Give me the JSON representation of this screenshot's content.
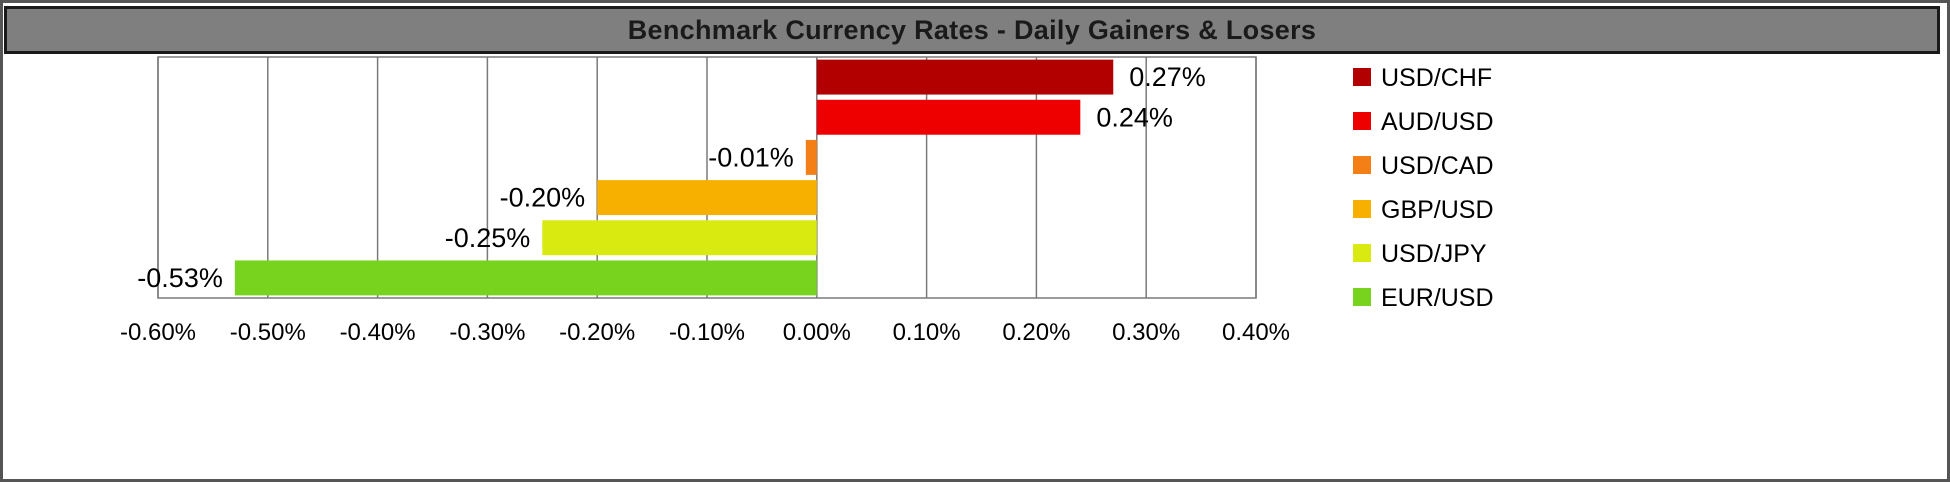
{
  "chart_data": {
    "type": "bar",
    "orientation": "horizontal",
    "title": "Benchmark Currency Rates - Daily Gainers & Losers",
    "categories": [
      "USD/CHF",
      "AUD/USD",
      "USD/CAD",
      "GBP/USD",
      "USD/JPY",
      "EUR/USD"
    ],
    "values": [
      0.27,
      0.24,
      -0.01,
      -0.2,
      -0.25,
      -0.53
    ],
    "value_labels": [
      "0.27%",
      "0.24%",
      "-0.01%",
      "-0.20%",
      "-0.25%",
      "-0.53%"
    ],
    "colors": [
      "#b20000",
      "#ee0000",
      "#f57f17",
      "#f7b000",
      "#d8ea10",
      "#78d31e"
    ],
    "xlim": [
      -0.6,
      0.4
    ],
    "xticks": [
      -0.6,
      -0.5,
      -0.4,
      -0.3,
      -0.2,
      -0.1,
      0.0,
      0.1,
      0.2,
      0.3,
      0.4
    ],
    "xtick_labels": [
      "-0.60%",
      "-0.50%",
      "-0.40%",
      "-0.30%",
      "-0.20%",
      "-0.10%",
      "0.00%",
      "0.10%",
      "0.20%",
      "0.30%",
      "0.40%"
    ],
    "grid": true,
    "legend": "right",
    "xlabel": "",
    "ylabel": ""
  }
}
